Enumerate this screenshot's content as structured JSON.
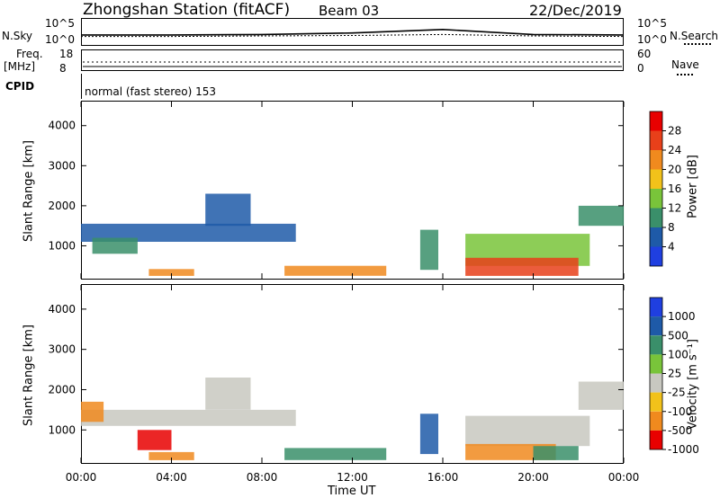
{
  "header": {
    "station_title": "Zhongshan Station (fitACF)",
    "beam": "Beam 03",
    "date": "22/Dec/2019"
  },
  "labels": {
    "nsky": "N.Sky",
    "nsearch": "N.Search",
    "freq": "Freq.",
    "freq_unit": "[MHz]",
    "nave": "Nave",
    "cpid": "CPID",
    "mode": "normal (fast stereo) 153",
    "xlabel": "Time UT",
    "ylabel_power": "Slant Range [km]",
    "ylabel_velocity": "Slant Range [km]",
    "colorbar_power": "Power [dB]",
    "colorbar_velocity": "Velocity [m s⁻¹]"
  },
  "noise_axis": {
    "left": [
      "10^5",
      "10^0"
    ],
    "right": [
      "10^5",
      "10^0"
    ]
  },
  "freq_axis": {
    "left": [
      "18",
      "8"
    ],
    "right": [
      "60",
      "0"
    ]
  },
  "colors": {
    "power": [
      "#1f3fe0",
      "#1e5aa8",
      "#3a8f6a",
      "#79c43a",
      "#f2c21a",
      "#f08a1e",
      "#e8401a",
      "#e80000"
    ],
    "velocity": [
      "#1f3fe0",
      "#1e5aa8",
      "#3a8f6a",
      "#79c43a",
      "#c8c8c0",
      "#f2c21a",
      "#f08a1e",
      "#e80000"
    ]
  },
  "chart_data": [
    {
      "type": "line",
      "title": "",
      "x": [
        "00:00",
        "04:00",
        "08:00",
        "12:00",
        "16:00",
        "20:00",
        "00:00"
      ],
      "series": [
        {
          "values": [
            1.8,
            1.8,
            1.9,
            2.2,
            2.9,
            1.9,
            1.8
          ]
        },
        {
          "values": [
            1.5,
            1.5,
            1.6,
            1.7,
            1.9,
            1.6,
            1.5
          ]
        }
      ],
      "ylim": [
        0,
        5
      ],
      "log_scale": true
    },
    {
      "type": "heatmap",
      "title": "",
      "xlabel": "Time UT",
      "ylabel": "Slant Range [km]",
      "x_ticks": [
        "00:00",
        "04:00",
        "08:00",
        "12:00",
        "16:00",
        "20:00",
        "00:00"
      ],
      "xlim_hours": [
        0,
        24
      ],
      "y_ticks": [
        1000,
        2000,
        3000,
        4000
      ],
      "ylim": [
        180,
        4600
      ],
      "colorbar": {
        "label": "Power [dB]",
        "ticks": [
          4,
          8,
          12,
          16,
          20,
          24,
          28
        ],
        "range": [
          0,
          30
        ]
      },
      "regions": [
        {
          "t0": 0.0,
          "t1": 9.5,
          "r0": 1100,
          "r1": 1550,
          "value": 5
        },
        {
          "t0": 0.5,
          "t1": 2.5,
          "r0": 800,
          "r1": 1200,
          "value": 11
        },
        {
          "t0": 3.0,
          "t1": 5.0,
          "r0": 250,
          "r1": 420,
          "value": 20
        },
        {
          "t0": 5.5,
          "t1": 7.5,
          "r0": 1500,
          "r1": 2300,
          "value": 7
        },
        {
          "t0": 9.0,
          "t1": 13.5,
          "r0": 250,
          "r1": 500,
          "value": 22
        },
        {
          "t0": 15.0,
          "t1": 15.8,
          "r0": 400,
          "r1": 1400,
          "value": 9
        },
        {
          "t0": 17.0,
          "t1": 22.5,
          "r0": 500,
          "r1": 1300,
          "value": 12
        },
        {
          "t0": 17.0,
          "t1": 22.0,
          "r0": 250,
          "r1": 700,
          "value": 27
        },
        {
          "t0": 22.0,
          "t1": 24.0,
          "r0": 1500,
          "r1": 2000,
          "value": 9
        }
      ]
    },
    {
      "type": "heatmap",
      "title": "",
      "xlabel": "Time UT",
      "ylabel": "Slant Range [km]",
      "x_ticks": [
        "00:00",
        "04:00",
        "08:00",
        "12:00",
        "16:00",
        "20:00",
        "00:00"
      ],
      "xlim_hours": [
        0,
        24
      ],
      "y_ticks": [
        1000,
        2000,
        3000,
        4000
      ],
      "ylim": [
        180,
        4600
      ],
      "colorbar": {
        "label": "Velocity [m s⁻¹]",
        "ticks": [
          1000,
          500,
          100,
          25,
          -25,
          -100,
          -500,
          -1000
        ]
      },
      "regions": [
        {
          "t0": 0.0,
          "t1": 9.5,
          "r0": 1100,
          "r1": 1500,
          "value": 0
        },
        {
          "t0": 0.0,
          "t1": 1.0,
          "r0": 1200,
          "r1": 1700,
          "value": -300
        },
        {
          "t0": 2.5,
          "t1": 4.0,
          "r0": 500,
          "r1": 1000,
          "value": -400
        },
        {
          "t0": 3.0,
          "t1": 5.0,
          "r0": 250,
          "r1": 450,
          "value": -300
        },
        {
          "t0": 5.5,
          "t1": 7.5,
          "r0": 1500,
          "r1": 2300,
          "value": 0
        },
        {
          "t0": 9.0,
          "t1": 13.5,
          "r0": 250,
          "r1": 550,
          "value": 200
        },
        {
          "t0": 15.0,
          "t1": 15.8,
          "r0": 400,
          "r1": 1400,
          "value": 300
        },
        {
          "t0": 17.0,
          "t1": 22.5,
          "r0": 600,
          "r1": 1350,
          "value": 0
        },
        {
          "t0": 17.0,
          "t1": 21.0,
          "r0": 250,
          "r1": 650,
          "value": -80
        },
        {
          "t0": 20.0,
          "t1": 22.0,
          "r0": 250,
          "r1": 600,
          "value": 150
        },
        {
          "t0": 22.0,
          "t1": 24.0,
          "r0": 1500,
          "r1": 2200,
          "value": 0
        }
      ]
    }
  ]
}
